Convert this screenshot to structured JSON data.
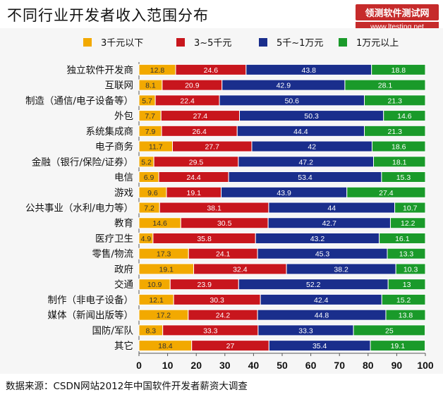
{
  "chart_data": {
    "type": "bar",
    "orientation": "horizontal",
    "stacked": true,
    "title": "不同行业开发者收入范围分布",
    "categories": [
      "独立软件开发商",
      "互联网",
      "制造（通信/电子设备等）",
      "外包",
      "系统集成商",
      "电子商务",
      "金融（银行/保险/证券）",
      "电信",
      "游戏",
      "公共事业（水利/电力等）",
      "教育",
      "医疗卫生",
      "零售/物流",
      "政府",
      "交通",
      "制作（非电子设备）",
      "媒体（新闻出版等）",
      "国防/军队",
      "其它"
    ],
    "series": [
      {
        "name": "3千元以下",
        "color": "#f2a900",
        "values": [
          12.8,
          8.1,
          5.7,
          7.7,
          7.9,
          11.7,
          5.2,
          6.9,
          9.6,
          7.2,
          14.6,
          4.9,
          17.3,
          19.1,
          10.9,
          12.1,
          17.2,
          8.3,
          18.4
        ]
      },
      {
        "name": "3~5千元",
        "color": "#c8161d",
        "values": [
          24.6,
          20.9,
          22.4,
          27.4,
          26.4,
          27.7,
          29.5,
          24.4,
          19.1,
          38.1,
          30.5,
          35.8,
          24.1,
          32.4,
          23.9,
          30.3,
          24.2,
          33.3,
          27
        ]
      },
      {
        "name": "5千~1万元",
        "color": "#1a2e8c",
        "values": [
          43.8,
          42.9,
          50.6,
          50.3,
          44.4,
          42,
          47.2,
          53.4,
          43.9,
          44,
          42.7,
          43.2,
          45.3,
          38.2,
          52.2,
          42.4,
          44.8,
          33.3,
          35.4
        ]
      },
      {
        "name": "1万元以上",
        "color": "#1a9a2a",
        "values": [
          18.8,
          28.1,
          21.3,
          14.6,
          21.3,
          18.6,
          18.1,
          15.3,
          27.4,
          10.7,
          12.2,
          16.1,
          13.3,
          10.3,
          13,
          15.2,
          13.8,
          25,
          19.1
        ]
      }
    ],
    "xlim": [
      0,
      100
    ],
    "xticks": [
      0,
      10,
      20,
      30,
      40,
      50,
      60,
      70,
      80,
      90,
      100
    ],
    "legend_position": "top",
    "source": "数据来源：CSDN网站2012年中国软件开发者薪资大调查"
  },
  "watermark": {
    "line1": "领测软件测试网",
    "line2": "www.ltesting.net"
  }
}
